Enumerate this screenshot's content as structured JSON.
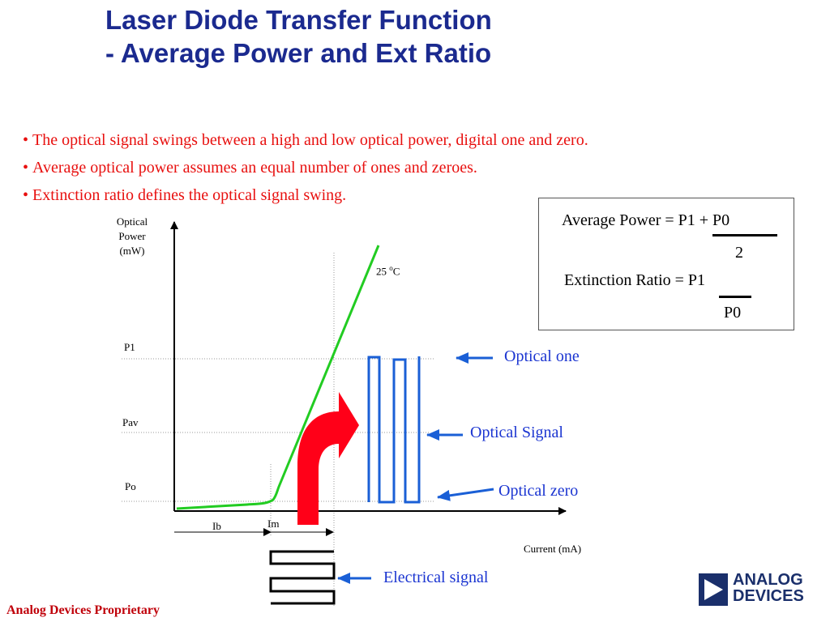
{
  "title": {
    "line1": "Laser Diode Transfer Function",
    "line2": "- Average Power and Ext Ratio"
  },
  "bullets": [
    "The optical signal swings between a high and low optical power, digital one and zero.",
    "Average optical  power assumes an equal number of ones and zeroes.",
    "Extinction ratio defines the optical signal swing."
  ],
  "formulas": {
    "average_power_lhs": "Average Power = P1 + P0",
    "average_power_den": "2",
    "extinction_ratio_lhs": "Extinction Ratio = P1",
    "extinction_ratio_den": "P0"
  },
  "axes": {
    "y_label": [
      "Optical",
      "Power",
      "(mW)"
    ],
    "x_label": "Current (mA)",
    "levels": {
      "p1": "P1",
      "pav": "Pav",
      "po": "Po"
    },
    "currents": {
      "ib": "Ib",
      "im": "Im"
    }
  },
  "curve_label": {
    "value": "25 ",
    "sup": "o",
    "unit": "C"
  },
  "annotations": {
    "optical_one": "Optical one",
    "optical_signal": "Optical Signal",
    "optical_zero": "Optical zero",
    "electrical_signal": "Electrical signal"
  },
  "footer": "Analog Devices Proprietary",
  "logo": {
    "line1": "ANALOG",
    "line2": "DEVICES"
  },
  "colors": {
    "title": "#1b2a8f",
    "bullet_text": "#e8100f",
    "annotation": "#1b35d1",
    "curve": "#22cc22",
    "signal": "#1a5fd6",
    "bias_arrow": "#ff0018",
    "footer": "#c0000a",
    "logo": "#1a2f6b"
  }
}
